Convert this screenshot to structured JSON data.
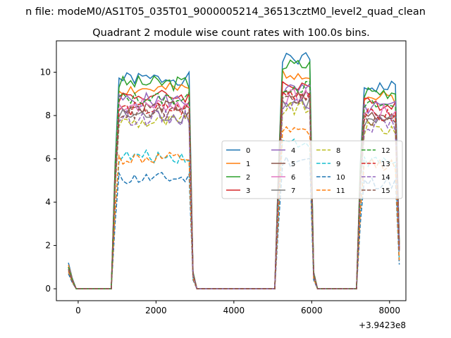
{
  "chart_data": {
    "type": "line",
    "suptitle": "n file: modeM0/AS1T05_035T01_9000005214_36513cztM0_level2_quad_clean",
    "title": "Quadrant 2 module wise count rates with 100.0s bins.",
    "xlabel": "",
    "ylabel": "",
    "x_offset_label": "+3.9423e8",
    "xlim": [
      -560,
      8420
    ],
    "ylim": [
      -0.55,
      11.45
    ],
    "xticks": [
      0,
      2000,
      4000,
      6000,
      8000
    ],
    "xtick_labels": [
      "0",
      "2000",
      "4000",
      "6000",
      "8000"
    ],
    "yticks": [
      0,
      2,
      4,
      6,
      8,
      10
    ],
    "ytick_labels": [
      "0",
      "2",
      "4",
      "6",
      "8",
      "10"
    ],
    "grid": false,
    "legend_placement": "center-right",
    "legend_columns": 4,
    "x": [
      -250,
      -150,
      -50,
      50,
      150,
      250,
      350,
      450,
      550,
      650,
      750,
      850,
      950,
      1050,
      1150,
      1250,
      1350,
      1450,
      1550,
      1650,
      1750,
      1850,
      1950,
      2050,
      2150,
      2250,
      2350,
      2450,
      2550,
      2650,
      2750,
      2850,
      2950,
      3050,
      3150,
      3250,
      3350,
      3450,
      3550,
      3650,
      3750,
      3850,
      3950,
      4050,
      4150,
      4250,
      4350,
      4450,
      4550,
      4650,
      4750,
      4850,
      4950,
      5050,
      5150,
      5250,
      5350,
      5450,
      5550,
      5650,
      5750,
      5850,
      5950,
      6050,
      6150,
      6250,
      6350,
      6450,
      6550,
      6650,
      6750,
      6850,
      6950,
      7050,
      7150,
      7250,
      7350,
      7450,
      7550,
      7650,
      7750,
      7850,
      7950,
      8050,
      8150,
      8250
    ],
    "series": [
      {
        "name": "0",
        "color": "#1f77b4",
        "dash": "solid",
        "level": 9.7,
        "amp": 0.3,
        "seed": 1,
        "start": 1.2,
        "peak2": 10.9
      },
      {
        "name": "1",
        "color": "#ff7f0e",
        "dash": "solid",
        "level": 9.2,
        "amp": 0.3,
        "seed": 2,
        "start": 1.1,
        "peak2": 10.2
      },
      {
        "name": "2",
        "color": "#2ca02c",
        "dash": "solid",
        "level": 9.5,
        "amp": 0.35,
        "seed": 3,
        "start": 1.0,
        "peak2": 10.6
      },
      {
        "name": "3",
        "color": "#d62728",
        "dash": "solid",
        "level": 8.9,
        "amp": 0.3,
        "seed": 4,
        "start": 1.0,
        "peak2": 9.6
      },
      {
        "name": "4",
        "color": "#9467bd",
        "dash": "solid",
        "level": 8.7,
        "amp": 0.35,
        "seed": 5,
        "start": 1.0,
        "peak2": 9.3
      },
      {
        "name": "5",
        "color": "#8c564b",
        "dash": "solid",
        "level": 8.4,
        "amp": 0.3,
        "seed": 6,
        "start": 0.9,
        "peak2": 9.1
      },
      {
        "name": "6",
        "color": "#e377c2",
        "dash": "solid",
        "level": 8.5,
        "amp": 0.35,
        "seed": 7,
        "start": 0.9,
        "peak2": 9.0
      },
      {
        "name": "7",
        "color": "#7f7f7f",
        "dash": "solid",
        "level": 8.0,
        "amp": 0.35,
        "seed": 8,
        "start": 0.9,
        "peak2": 8.8
      },
      {
        "name": "8",
        "color": "#bcbd22",
        "dash": "dashed",
        "level": 7.7,
        "amp": 0.35,
        "seed": 9,
        "start": 0.9,
        "peak2": 8.5
      },
      {
        "name": "9",
        "color": "#17becf",
        "dash": "dashed",
        "level": 6.1,
        "amp": 0.3,
        "seed": 10,
        "start": 0.8,
        "peak2": 7.0
      },
      {
        "name": "10",
        "color": "#1f77b4",
        "dash": "dashed",
        "level": 5.1,
        "amp": 0.3,
        "seed": 11,
        "start": 0.7,
        "peak2": 6.2
      },
      {
        "name": "11",
        "color": "#ff7f0e",
        "dash": "dashed",
        "level": 6.0,
        "amp": 0.3,
        "seed": 12,
        "start": 0.8,
        "peak2": 7.6
      },
      {
        "name": "12",
        "color": "#2ca02c",
        "dash": "dashed",
        "level": 8.8,
        "amp": 0.3,
        "seed": 13,
        "start": 1.0,
        "peak2": 9.5
      },
      {
        "name": "13",
        "color": "#d62728",
        "dash": "dashed",
        "level": 8.3,
        "amp": 0.35,
        "seed": 14,
        "start": 0.9,
        "peak2": 9.3
      },
      {
        "name": "14",
        "color": "#9467bd",
        "dash": "dashed",
        "level": 7.9,
        "amp": 0.35,
        "seed": 15,
        "start": 0.9,
        "peak2": 8.8
      },
      {
        "name": "15",
        "color": "#8c564b",
        "dash": "dashed",
        "level": 8.1,
        "amp": 0.3,
        "seed": 16,
        "start": 0.9,
        "peak2": 9.0
      }
    ],
    "on_segments": [
      [
        1050,
        2850
      ],
      [
        5250,
        5950
      ],
      [
        7350,
        8150
      ]
    ]
  }
}
